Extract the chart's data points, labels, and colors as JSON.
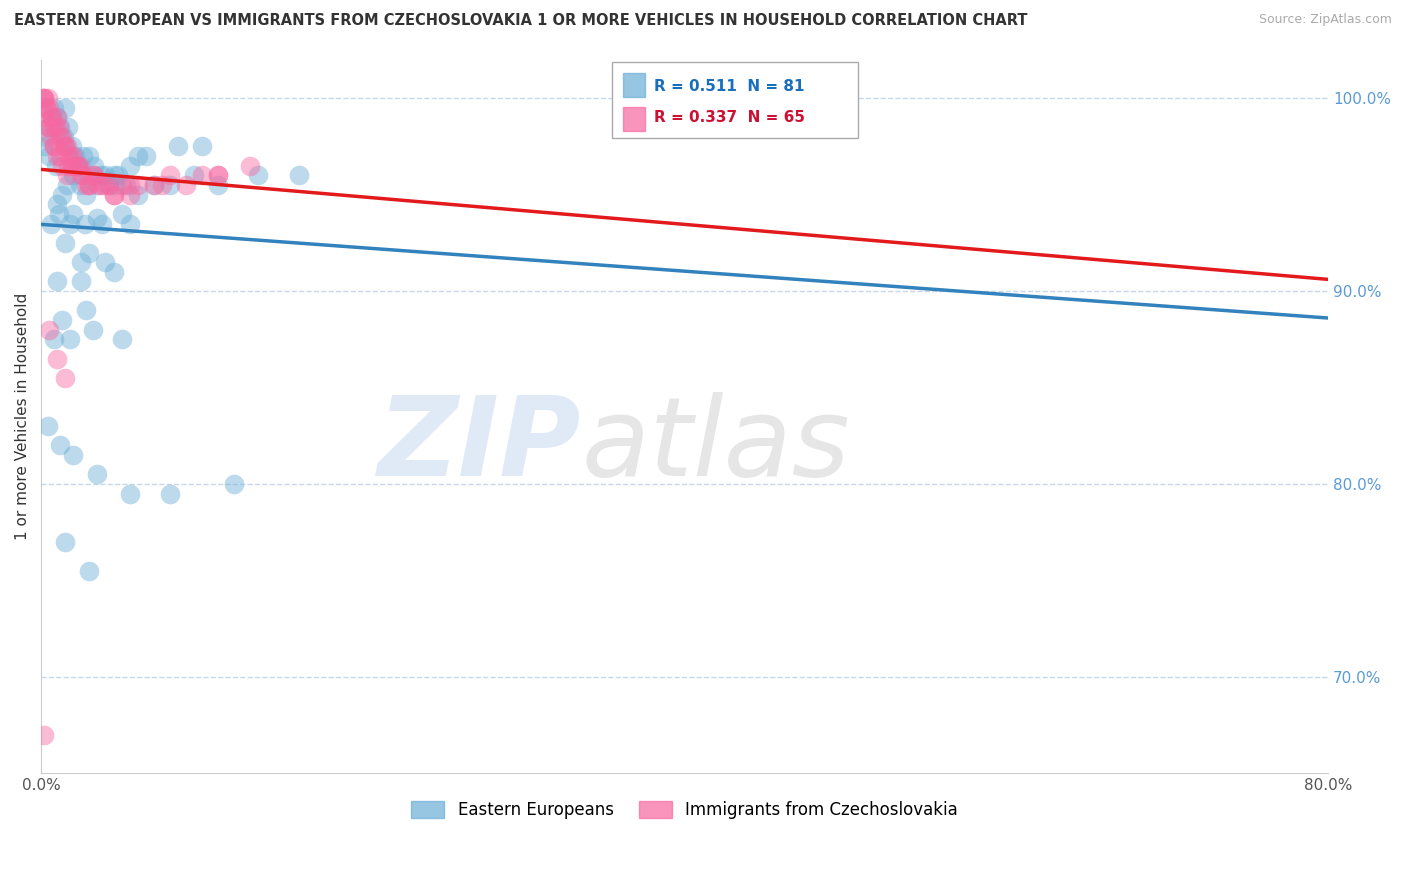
{
  "title": "EASTERN EUROPEAN VS IMMIGRANTS FROM CZECHOSLOVAKIA 1 OR MORE VEHICLES IN HOUSEHOLD CORRELATION CHART",
  "source": "Source: ZipAtlas.com",
  "ylabel": "1 or more Vehicles in Household",
  "xlim": [
    0.0,
    80.0
  ],
  "ylim": [
    65.0,
    102.0
  ],
  "y_ticks": [
    70.0,
    80.0,
    90.0,
    100.0
  ],
  "y_tick_labels": [
    "70.0%",
    "80.0%",
    "90.0%",
    "100.0%"
  ],
  "blue_color": "#6baed6",
  "pink_color": "#f768a1",
  "blue_line_color": "#3182bd",
  "pink_line_color": "#e31a1c",
  "blue_R": 0.511,
  "blue_N": 81,
  "pink_R": 0.337,
  "pink_N": 65,
  "legend_label_blue": "Eastern Europeans",
  "legend_label_pink": "Immigrants from Czechoslovakia",
  "blue_scatter_x": [
    0.2,
    0.3,
    0.5,
    0.7,
    0.8,
    1.0,
    1.2,
    1.4,
    1.5,
    1.7,
    1.9,
    2.1,
    2.3,
    2.6,
    3.0,
    3.3,
    3.7,
    4.2,
    4.8,
    5.3,
    6.0,
    7.0,
    8.0,
    9.5,
    11.0,
    13.5,
    16.0,
    1.0,
    1.3,
    1.6,
    2.0,
    2.4,
    2.8,
    3.5,
    4.0,
    4.6,
    5.5,
    6.5,
    8.5,
    10.0,
    0.5,
    0.9,
    1.5,
    2.2,
    3.0,
    4.5,
    6.0,
    0.6,
    1.1,
    1.8,
    2.7,
    3.8,
    5.0,
    2.0,
    3.5,
    5.5,
    1.5,
    3.0,
    2.5,
    4.0,
    1.0,
    2.5,
    4.5,
    1.3,
    2.8,
    0.8,
    1.8,
    3.2,
    5.0,
    0.4,
    1.2,
    2.0,
    3.5,
    5.5,
    8.0,
    12.0,
    1.5,
    3.0
  ],
  "blue_scatter_y": [
    97.5,
    98.0,
    98.5,
    99.0,
    99.5,
    99.0,
    98.5,
    98.0,
    99.5,
    98.5,
    97.5,
    97.0,
    96.5,
    97.0,
    96.0,
    96.5,
    96.0,
    95.5,
    96.0,
    95.5,
    95.0,
    95.5,
    95.5,
    96.0,
    95.5,
    96.0,
    96.0,
    94.5,
    95.0,
    95.5,
    96.0,
    95.5,
    95.0,
    95.5,
    96.0,
    95.5,
    96.5,
    97.0,
    97.5,
    97.5,
    97.0,
    96.5,
    97.5,
    96.5,
    97.0,
    96.0,
    97.0,
    93.5,
    94.0,
    93.5,
    93.5,
    93.5,
    94.0,
    94.0,
    93.8,
    93.5,
    92.5,
    92.0,
    91.5,
    91.5,
    90.5,
    90.5,
    91.0,
    88.5,
    89.0,
    87.5,
    87.5,
    88.0,
    87.5,
    83.0,
    82.0,
    81.5,
    80.5,
    79.5,
    79.5,
    80.0,
    77.0,
    75.5
  ],
  "pink_scatter_x": [
    0.1,
    0.15,
    0.2,
    0.3,
    0.4,
    0.5,
    0.6,
    0.7,
    0.8,
    0.9,
    1.0,
    1.1,
    1.2,
    1.3,
    1.4,
    1.5,
    1.6,
    1.7,
    1.8,
    1.9,
    2.0,
    2.2,
    2.4,
    2.6,
    2.8,
    3.0,
    3.3,
    3.6,
    4.0,
    4.5,
    5.0,
    5.5,
    6.0,
    7.0,
    8.0,
    9.0,
    10.0,
    11.0,
    13.0,
    0.2,
    0.4,
    0.6,
    0.8,
    1.0,
    1.3,
    1.6,
    2.0,
    2.5,
    3.0,
    3.8,
    4.5,
    0.3,
    0.5,
    0.8,
    1.2,
    1.7,
    2.3,
    3.2,
    4.2,
    5.5,
    7.5,
    11.0,
    0.5,
    1.0,
    1.5,
    0.2
  ],
  "pink_scatter_y": [
    100.0,
    100.0,
    100.0,
    99.5,
    100.0,
    99.5,
    99.0,
    99.0,
    98.5,
    98.5,
    99.0,
    98.5,
    98.0,
    98.0,
    97.5,
    97.5,
    97.5,
    97.0,
    97.0,
    96.5,
    97.0,
    96.5,
    96.5,
    96.0,
    95.5,
    95.5,
    96.0,
    95.5,
    95.5,
    95.0,
    95.5,
    95.0,
    95.5,
    95.5,
    96.0,
    95.5,
    96.0,
    96.0,
    96.5,
    99.0,
    98.5,
    98.0,
    97.5,
    97.0,
    96.5,
    96.0,
    96.5,
    96.0,
    95.5,
    95.5,
    95.0,
    99.5,
    98.5,
    97.5,
    97.0,
    96.5,
    96.5,
    96.0,
    95.5,
    95.5,
    95.5,
    96.0,
    88.0,
    86.5,
    85.5,
    67.0
  ]
}
